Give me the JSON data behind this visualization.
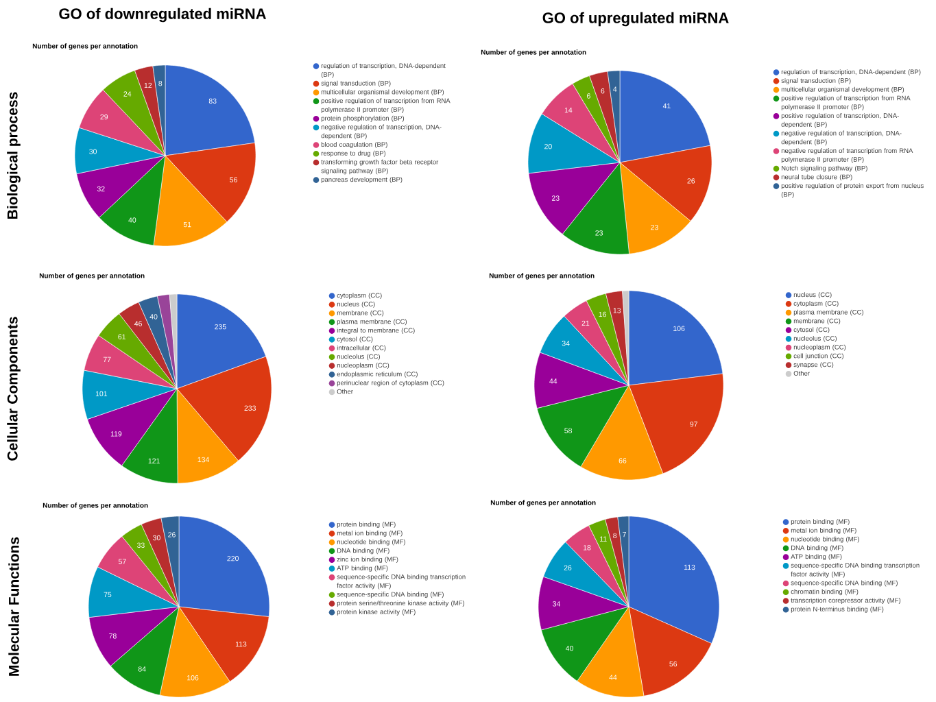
{
  "chart_data": [
    {
      "type": "pie",
      "title": "GO of downregulated miRNA",
      "subtitle": "Number of genes per annotation",
      "ylabel": "Biological process",
      "legend": "right",
      "data_labels": true,
      "categories": [
        "regulation of transcription, DNA-dependent (BP)",
        "signal transduction (BP)",
        "multicellular organismal development (BP)",
        "positive regulation of transcription from RNA polymerase II promoter (BP)",
        "protein phosphorylation (BP)",
        "negative regulation of transcription, DNA-dependent (BP)",
        "blood coagulation (BP)",
        "response to drug (BP)",
        "transforming growth factor beta receptor signaling pathway (BP)",
        "pancreas development (BP)"
      ],
      "values": [
        83,
        56,
        51,
        40,
        32,
        30,
        29,
        24,
        12,
        8
      ],
      "colors": [
        "#3366cc",
        "#dc3912",
        "#ff9900",
        "#109618",
        "#990099",
        "#0099c6",
        "#dd4477",
        "#66aa00",
        "#b82e2e",
        "#316395"
      ]
    },
    {
      "type": "pie",
      "title": "GO of upregulated miRNA",
      "subtitle": "Number of genes per annotation",
      "legend": "right",
      "data_labels": true,
      "categories": [
        "regulation of transcription, DNA-dependent (BP)",
        "signal transduction (BP)",
        "multicellular organismal development (BP)",
        "positive regulation of transcription from RNA polymerase II promoter (BP)",
        "positive regulation of transcription, DNA-dependent (BP)",
        "negative regulation of transcription, DNA-dependent (BP)",
        "negative regulation of transcription from RNA polymerase II promoter (BP)",
        "Notch signaling pathway (BP)",
        "neural tube closure (BP)",
        "positive regulation of protein export from nucleus (BP)"
      ],
      "values": [
        41,
        26,
        23,
        23,
        23,
        20,
        14,
        6,
        6,
        4
      ],
      "colors": [
        "#3366cc",
        "#dc3912",
        "#ff9900",
        "#109618",
        "#990099",
        "#0099c6",
        "#dd4477",
        "#66aa00",
        "#b82e2e",
        "#316395"
      ]
    },
    {
      "type": "pie",
      "subtitle": "Number of genes per annotation",
      "ylabel": "Cellular Components",
      "legend": "right",
      "categories": [
        "cytoplasm (CC)",
        "nucleus (CC)",
        "membrane (CC)",
        "plasma membrane (CC)",
        "integral to membrane (CC)",
        "cytosol (CC)",
        "intracellular (CC)",
        "nucleolus (CC)",
        "nucleoplasm (CC)",
        "endoplasmic reticulum (CC)",
        "perinuclear region of cytoplasm (CC)",
        "Other"
      ],
      "values": [
        235,
        233,
        134,
        121,
        119,
        101,
        77,
        61,
        46,
        40,
        25,
        15
      ],
      "value_labels": [
        "235",
        "233",
        "134",
        "121",
        "119",
        "101",
        "77",
        "61",
        "46",
        "40",
        null,
        null
      ],
      "colors": [
        "#3366cc",
        "#dc3912",
        "#ff9900",
        "#109618",
        "#990099",
        "#0099c6",
        "#dd4477",
        "#66aa00",
        "#b82e2e",
        "#316395",
        "#994499",
        "#cccccc"
      ]
    },
    {
      "type": "pie",
      "subtitle": "Number of genes per annotation",
      "legend": "right",
      "categories": [
        "nucleus (CC)",
        "cytoplasm (CC)",
        "plasma membrane (CC)",
        "membrane (CC)",
        "cytosol (CC)",
        "nucleolus (CC)",
        "nucleoplasm (CC)",
        "cell junction (CC)",
        "synapse (CC)",
        "Other"
      ],
      "values": [
        106,
        97,
        66,
        58,
        44,
        34,
        21,
        16,
        13,
        5
      ],
      "value_labels": [
        "106",
        "97",
        "66",
        "58",
        "44",
        "34",
        "21",
        "16",
        "13",
        null
      ],
      "colors": [
        "#3366cc",
        "#dc3912",
        "#ff9900",
        "#109618",
        "#990099",
        "#0099c6",
        "#dd4477",
        "#66aa00",
        "#b82e2e",
        "#cccccc"
      ]
    },
    {
      "type": "pie",
      "subtitle": "Number of genes per annotation",
      "ylabel": "Molecular Functions",
      "legend": "right",
      "data_labels": true,
      "categories": [
        "protein binding (MF)",
        "metal ion binding (MF)",
        "nucleotide binding (MF)",
        "DNA binding (MF)",
        "zinc ion binding (MF)",
        "ATP binding (MF)",
        "sequence-specific DNA binding transcription factor activity (MF)",
        "sequence-specific DNA binding (MF)",
        "protein serine/threonine kinase activity (MF)",
        "protein kinase activity (MF)"
      ],
      "values": [
        220,
        113,
        106,
        84,
        78,
        75,
        57,
        33,
        30,
        26
      ],
      "colors": [
        "#3366cc",
        "#dc3912",
        "#ff9900",
        "#109618",
        "#990099",
        "#0099c6",
        "#dd4477",
        "#66aa00",
        "#b82e2e",
        "#316395"
      ]
    },
    {
      "type": "pie",
      "subtitle": "Number of genes per annotation",
      "legend": "right",
      "data_labels": true,
      "categories": [
        "protein binding (MF)",
        "metal ion binding (MF)",
        "nucleotide binding (MF)",
        "DNA binding (MF)",
        "ATP binding (MF)",
        "sequence-specific DNA binding transcription factor activity (MF)",
        "sequence-specific DNA binding (MF)",
        "chromatin binding (MF)",
        "transcription corepressor activity (MF)",
        "protein N-terminus binding (MF)"
      ],
      "values": [
        113,
        56,
        44,
        40,
        34,
        26,
        18,
        11,
        8,
        7
      ],
      "colors": [
        "#3366cc",
        "#dc3912",
        "#ff9900",
        "#109618",
        "#990099",
        "#0099c6",
        "#dd4477",
        "#66aa00",
        "#b82e2e",
        "#316395"
      ]
    }
  ]
}
